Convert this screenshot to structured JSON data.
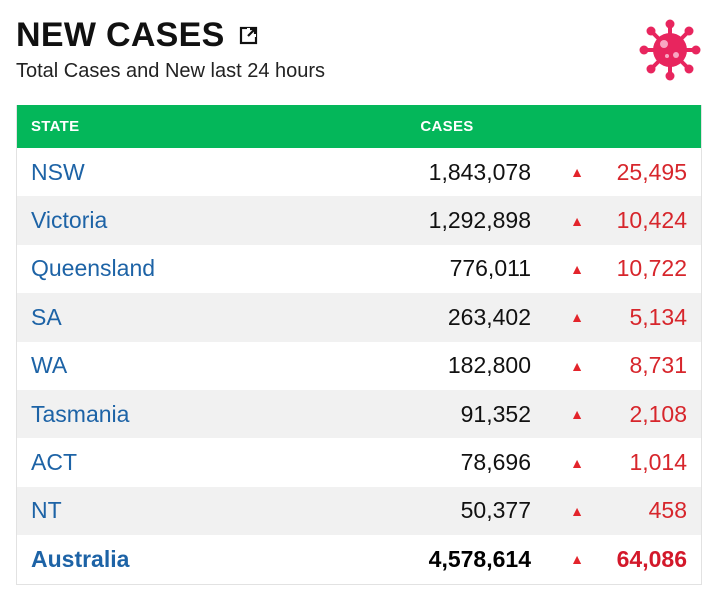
{
  "header": {
    "title": "NEW CASES",
    "subtitle": "Total Cases and New last 24 hours",
    "popout_icon": "external-link-icon",
    "logo_icon": "virus-icon"
  },
  "colors": {
    "header_bg": "#04b75a",
    "state_text": "#1d63a6",
    "increase": "#d7262c",
    "alt_row": "#f1f1f1"
  },
  "table": {
    "columns": [
      "STATE",
      "CASES"
    ],
    "arrow_symbol": "▲",
    "rows": [
      {
        "state": "NSW",
        "cases": "1,843,078",
        "new": "25,495"
      },
      {
        "state": "Victoria",
        "cases": "1,292,898",
        "new": "10,424"
      },
      {
        "state": "Queensland",
        "cases": "776,011",
        "new": "10,722"
      },
      {
        "state": "SA",
        "cases": "263,402",
        "new": "5,134"
      },
      {
        "state": "WA",
        "cases": "182,800",
        "new": "8,731"
      },
      {
        "state": "Tasmania",
        "cases": "91,352",
        "new": "2,108"
      },
      {
        "state": "ACT",
        "cases": "78,696",
        "new": "1,014"
      },
      {
        "state": "NT",
        "cases": "50,377",
        "new": "458"
      }
    ],
    "total": {
      "state": "Australia",
      "cases": "4,578,614",
      "new": "64,086"
    }
  }
}
